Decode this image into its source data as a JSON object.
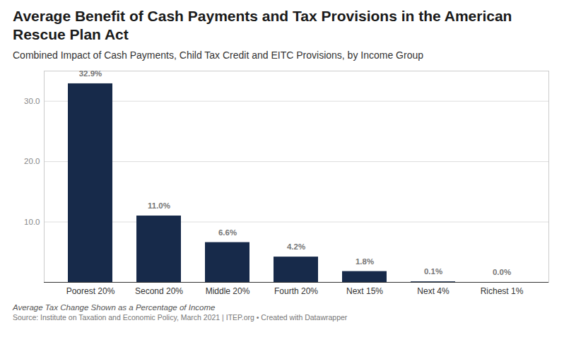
{
  "chart_data": {
    "type": "bar",
    "title": "Average Benefit of Cash Payments and Tax Provisions in the American Rescue Plan Act",
    "subtitle": "Combined Impact of Cash Payments, Child Tax Credit and EITC Provisions, by Income Group",
    "caption": "Average Tax Change Shown as a Percentage of Income",
    "source": "Source: Institute on Taxation and Economic Policy, March 2021 | ITEP.org • Created with Datawrapper",
    "categories": [
      "Poorest 20%",
      "Second 20%",
      "Middle 20%",
      "Fourth 20%",
      "Next 15%",
      "Next 4%",
      "Richest 1%"
    ],
    "values": [
      32.9,
      11.0,
      6.6,
      4.2,
      1.8,
      0.1,
      0.0
    ],
    "value_labels": [
      "32.9%",
      "11.0%",
      "6.6%",
      "4.2%",
      "1.8%",
      "0.1%",
      "0.0%"
    ],
    "color": "#172a4a",
    "ylim": [
      0,
      35
    ],
    "yticks": [
      {
        "value": 10,
        "label": "10.0"
      },
      {
        "value": 20,
        "label": "20.0"
      },
      {
        "value": 30,
        "label": "30.0"
      }
    ],
    "grid": true,
    "data_labels": true
  }
}
